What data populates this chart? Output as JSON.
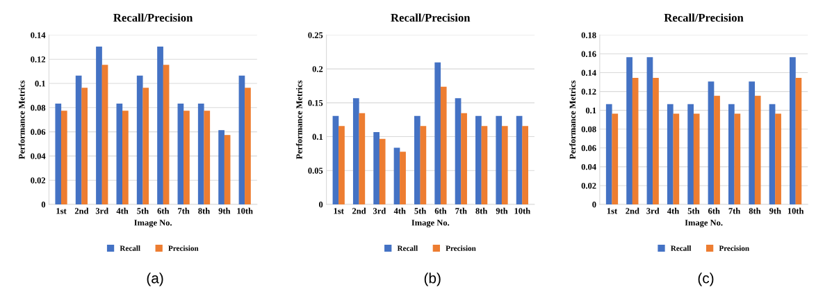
{
  "chart_data": [
    {
      "type": "bar",
      "title": "Recall/Precision",
      "xlabel": "Image No.",
      "ylabel": "Performance Metrics",
      "categories": [
        "1st",
        "2nd",
        "3rd",
        "4th",
        "5th",
        "6th",
        "7th",
        "8th",
        "9th",
        "10th"
      ],
      "series": [
        {
          "name": "Recall",
          "color": "#4472c4",
          "values": [
            0.083,
            0.106,
            0.13,
            0.083,
            0.106,
            0.13,
            0.083,
            0.083,
            0.061,
            0.106
          ]
        },
        {
          "name": "Precision",
          "color": "#ed7d31",
          "values": [
            0.077,
            0.096,
            0.115,
            0.077,
            0.096,
            0.115,
            0.077,
            0.077,
            0.057,
            0.096
          ]
        }
      ],
      "ylim": [
        0,
        0.14
      ],
      "yticks": [
        0,
        0.02,
        0.04,
        0.06,
        0.08,
        0.1,
        0.12,
        0.14
      ],
      "grid": "y",
      "legend": "bottom",
      "annotations": [
        "(a)"
      ]
    },
    {
      "type": "bar",
      "title": "Recall/Precision",
      "xlabel": "Image No.",
      "ylabel": "Performance Metrics",
      "categories": [
        "1st",
        "2nd",
        "3rd",
        "4th",
        "5th",
        "6th",
        "7th",
        "8th",
        "9th",
        "10th"
      ],
      "series": [
        {
          "name": "Recall",
          "color": "#4472c4",
          "values": [
            0.13,
            0.156,
            0.106,
            0.083,
            0.13,
            0.209,
            0.156,
            0.13,
            0.13,
            0.13
          ]
        },
        {
          "name": "Precision",
          "color": "#ed7d31",
          "values": [
            0.115,
            0.134,
            0.096,
            0.077,
            0.115,
            0.173,
            0.134,
            0.115,
            0.115,
            0.115
          ]
        }
      ],
      "ylim": [
        0,
        0.25
      ],
      "yticks": [
        0,
        0.05,
        0.1,
        0.15,
        0.2,
        0.25
      ],
      "grid": "y",
      "legend": "bottom",
      "annotations": [
        "(b)"
      ]
    },
    {
      "type": "bar",
      "title": "Recall/Precision",
      "xlabel": "Image No.",
      "ylabel": "Performance Metrics",
      "categories": [
        "1st",
        "2nd",
        "3rd",
        "4th",
        "5th",
        "6th",
        "7th",
        "8th",
        "9th",
        "10th"
      ],
      "series": [
        {
          "name": "Recall",
          "color": "#4472c4",
          "values": [
            0.106,
            0.156,
            0.156,
            0.106,
            0.106,
            0.13,
            0.106,
            0.13,
            0.106,
            0.156
          ]
        },
        {
          "name": "Precision",
          "color": "#ed7d31",
          "values": [
            0.096,
            0.134,
            0.134,
            0.096,
            0.096,
            0.115,
            0.096,
            0.115,
            0.096,
            0.134
          ]
        }
      ],
      "ylim": [
        0,
        0.18
      ],
      "yticks": [
        0,
        0.02,
        0.04,
        0.06,
        0.08,
        0.1,
        0.12,
        0.14,
        0.16,
        0.18
      ],
      "grid": "y",
      "legend": "bottom",
      "annotations": [
        "(c)"
      ]
    }
  ]
}
